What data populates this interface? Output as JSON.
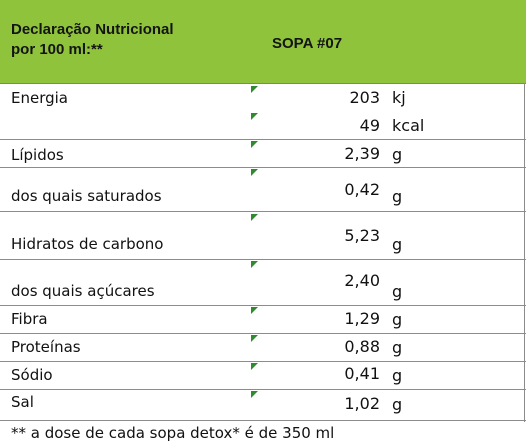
{
  "header": {
    "left_line1": "Declaração Nutricional",
    "left_line2": "por 100 ml:**",
    "product": "SOPA #07"
  },
  "rows": [
    {
      "label": "Energia",
      "value": "203",
      "unit": "kj"
    },
    {
      "label": "",
      "value": "49",
      "unit": "kcal"
    },
    {
      "label": "Lípidos",
      "value": "2,39",
      "unit": "g"
    },
    {
      "label": "dos quais saturados",
      "value": "0,42",
      "unit": "g"
    },
    {
      "label": "Hidratos de carbono",
      "value": "5,23",
      "unit": "g"
    },
    {
      "label": "dos quais açúcares",
      "value": "2,40",
      "unit": "g"
    },
    {
      "label": "Fibra",
      "value": "1,29",
      "unit": "g"
    },
    {
      "label": "Proteínas",
      "value": "0,88",
      "unit": "g"
    },
    {
      "label": "Sódio",
      "value": "0,41",
      "unit": "g"
    },
    {
      "label": "Sal",
      "value": "1,02",
      "unit": "g"
    }
  ],
  "footer": "** a dose de cada sopa detox* é de 350 ml",
  "colors": {
    "header_bg": "#8fc33b",
    "marker": "#2e8b2e"
  }
}
